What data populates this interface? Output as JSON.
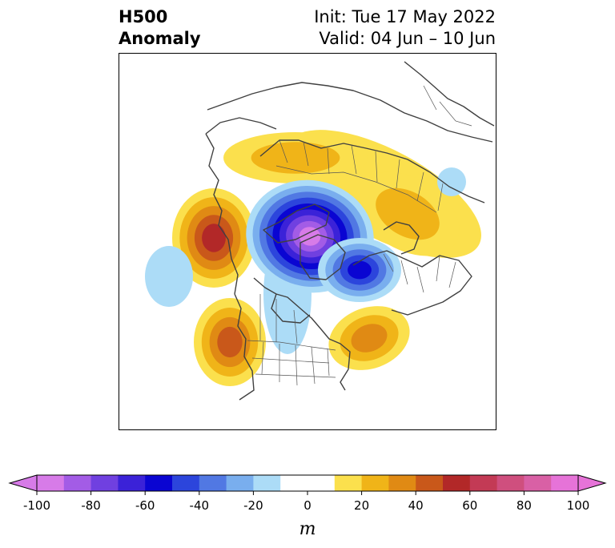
{
  "title": {
    "line1": "H500",
    "line2": "Anomaly",
    "init": "Init: Tue 17 May 2022",
    "valid": "Valid: 04 Jun – 10 Jun"
  },
  "colorbar": {
    "unit": "m",
    "ticks": [
      "-100",
      "-80",
      "-60",
      "-40",
      "-20",
      "0",
      "20",
      "40",
      "60",
      "80",
      "100"
    ],
    "bins": [
      {
        "range": "-100 to -90",
        "color": "#d77be8"
      },
      {
        "range": "-90 to -80",
        "color": "#a35ce6"
      },
      {
        "range": "-80 to -70",
        "color": "#7040e0"
      },
      {
        "range": "-70 to -60",
        "color": "#3b22d8"
      },
      {
        "range": "-60 to -50",
        "color": "#0a05d2"
      },
      {
        "range": "-50 to -40",
        "color": "#2c45dc"
      },
      {
        "range": "-40 to -30",
        "color": "#5178e3"
      },
      {
        "range": "-30 to -20",
        "color": "#79aeee"
      },
      {
        "range": "-20 to -10",
        "color": "#acdcf7"
      },
      {
        "range": "-10 to 0",
        "color": "#ffffff"
      },
      {
        "range": "0 to 10",
        "color": "#ffffff"
      },
      {
        "range": "10 to 20",
        "color": "#fbe04d"
      },
      {
        "range": "20 to 30",
        "color": "#f0b418"
      },
      {
        "range": "30 to 40",
        "color": "#e08a14"
      },
      {
        "range": "40 to 50",
        "color": "#c9581a"
      },
      {
        "range": "50 to 60",
        "color": "#b22828"
      },
      {
        "range": "60 to 70",
        "color": "#c33a55"
      },
      {
        "range": "70 to 80",
        "color": "#cf4f7e"
      },
      {
        "range": "80 to 90",
        "color": "#d960a5"
      },
      {
        "range": "90 to 100",
        "color": "#e673d8"
      }
    ],
    "under_color": "#d77be8",
    "over_color": "#e673d8"
  },
  "map": {
    "projection": "polar-stereographic-north",
    "anomalies": [
      {
        "region": "central-arctic",
        "sign": "negative",
        "peak": -100
      },
      {
        "region": "kara-barents-sea",
        "sign": "negative",
        "peak": -60
      },
      {
        "region": "gulf-of-alaska",
        "sign": "positive",
        "peak": 55
      },
      {
        "region": "western-us",
        "sign": "positive",
        "peak": 50
      },
      {
        "region": "northeast-us",
        "sign": "positive",
        "peak": 40
      },
      {
        "region": "northern-siberia-arc",
        "sign": "positive",
        "peak": 30
      },
      {
        "region": "north-pacific",
        "sign": "negative",
        "peak": -20
      }
    ]
  }
}
